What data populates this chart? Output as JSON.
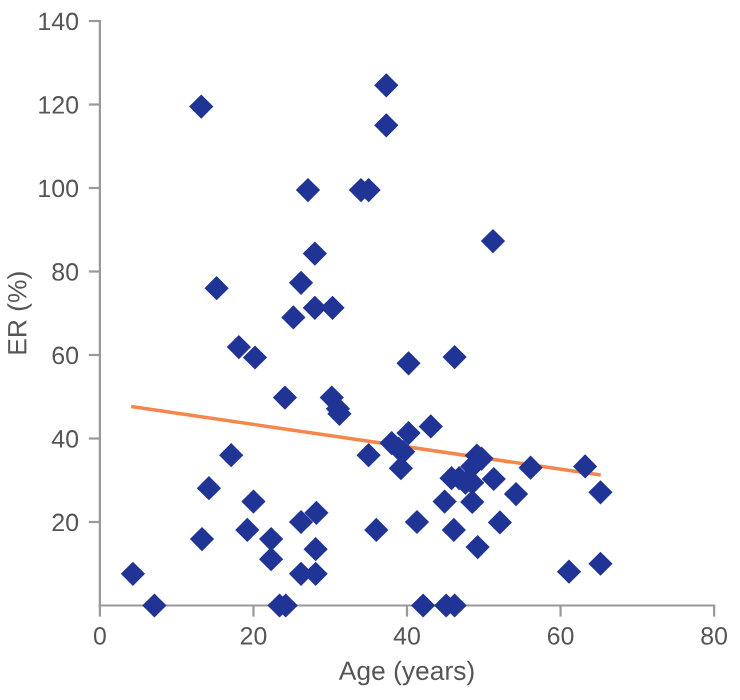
{
  "chart_data": {
    "type": "scatter",
    "xlabel": "Age (years)",
    "ylabel": "ER (%)",
    "xlim": [
      0,
      80
    ],
    "ylim": [
      0,
      140
    ],
    "xticks": [
      0,
      20,
      40,
      60,
      80
    ],
    "yticks": [
      20,
      40,
      60,
      80,
      100,
      120,
      140
    ],
    "grid": false,
    "legend": false,
    "series": [
      {
        "marker": "diamond",
        "color": "#1f3494",
        "x": [
          13.2,
          37.3,
          37.3,
          27.1,
          34,
          35,
          28,
          15.2,
          26.2,
          28,
          30.3,
          25.2,
          51.2,
          18.1,
          20.2,
          24.1,
          30.2,
          31,
          31.2,
          17.1,
          14.2,
          20,
          13.3,
          19.2,
          22.3,
          22.3,
          26.2,
          28.2,
          28.1,
          26.2,
          28.1,
          4.3,
          7.1,
          23.4,
          24.2,
          35,
          36,
          40.2,
          46.2,
          43.1,
          40.2,
          38,
          38.9,
          39.5,
          39.2,
          49.1,
          49.7,
          48.5,
          45.8,
          46.8,
          47.6,
          48.5,
          51.3,
          56.1,
          63.2,
          65.2,
          54.2,
          44.9,
          48.5,
          52.1,
          41.3,
          46.1,
          49.2,
          61.1,
          65.2,
          42.1,
          45.1,
          46.2
        ],
        "values": [
          119.5,
          124.6,
          115,
          99.5,
          99.5,
          99.5,
          84.3,
          76,
          77.3,
          71.3,
          71.3,
          69,
          87.3,
          61.9,
          59.4,
          49.8,
          49.8,
          47.1,
          45.9,
          36,
          28.1,
          24.9,
          15.9,
          18.1,
          15.9,
          11.1,
          20,
          22.2,
          13.5,
          7.6,
          7.6,
          7.6,
          0,
          0,
          0,
          36,
          18.1,
          58,
          59.5,
          42.9,
          41.3,
          38.9,
          37.6,
          36.8,
          32.9,
          35.9,
          35.2,
          33.3,
          30.5,
          30.5,
          29.4,
          29.4,
          30.3,
          33,
          33.3,
          27.1,
          26.7,
          24.9,
          24.8,
          19.9,
          20,
          18.1,
          14,
          8.1,
          10,
          0,
          0,
          0
        ]
      },
      {
        "type": "line",
        "marker": "none",
        "line_style": "solid",
        "color": "#f4874b",
        "x": [
          4.3,
          65
        ],
        "values": [
          47.6,
          31.3
        ]
      }
    ]
  }
}
